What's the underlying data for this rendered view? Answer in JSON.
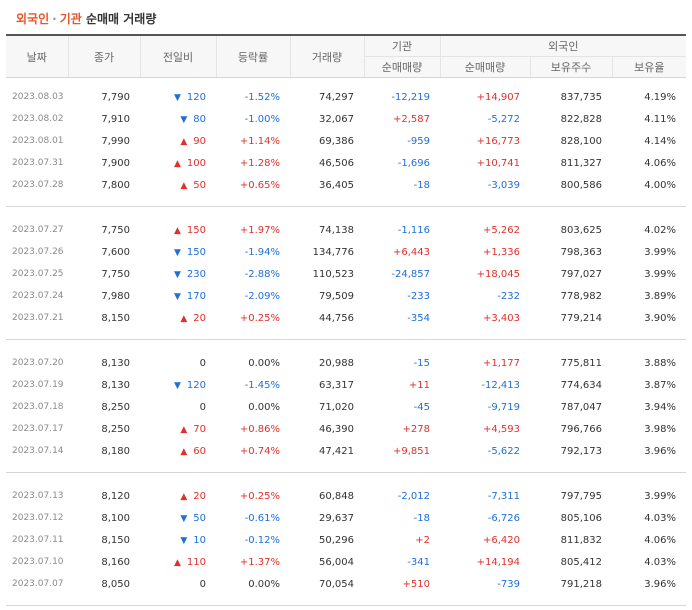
{
  "title": {
    "part1": "외국인",
    "sep": "·",
    "part2": "기관",
    "part3": "순매매 거래량"
  },
  "headers": {
    "date": "날짜",
    "close": "종가",
    "change": "전일비",
    "rate": "등락률",
    "volume": "거래량",
    "inst": "기관",
    "foreign": "외국인",
    "inst_net": "순매매량",
    "foreign_net": "순매매량",
    "foreign_hold": "보유주수",
    "foreign_ratio": "보유율"
  },
  "colors": {
    "up": "#e0302c",
    "down": "#1e6fd6",
    "accent": "#e4572e"
  },
  "groups": [
    [
      {
        "date": "2023.08.03",
        "close": "7,790",
        "dir": "down",
        "chg": "120",
        "rate": "-1.52%",
        "vol": "74,297",
        "inst": "-12,219",
        "frgn": "+14,907",
        "hold": "837,735",
        "ratio": "4.19%"
      },
      {
        "date": "2023.08.02",
        "close": "7,910",
        "dir": "down",
        "chg": "80",
        "rate": "-1.00%",
        "vol": "32,067",
        "inst": "+2,587",
        "frgn": "-5,272",
        "hold": "822,828",
        "ratio": "4.11%"
      },
      {
        "date": "2023.08.01",
        "close": "7,990",
        "dir": "up",
        "chg": "90",
        "rate": "+1.14%",
        "vol": "69,386",
        "inst": "-959",
        "frgn": "+16,773",
        "hold": "828,100",
        "ratio": "4.14%"
      },
      {
        "date": "2023.07.31",
        "close": "7,900",
        "dir": "up",
        "chg": "100",
        "rate": "+1.28%",
        "vol": "46,506",
        "inst": "-1,696",
        "frgn": "+10,741",
        "hold": "811,327",
        "ratio": "4.06%"
      },
      {
        "date": "2023.07.28",
        "close": "7,800",
        "dir": "up",
        "chg": "50",
        "rate": "+0.65%",
        "vol": "36,405",
        "inst": "-18",
        "frgn": "-3,039",
        "hold": "800,586",
        "ratio": "4.00%"
      }
    ],
    [
      {
        "date": "2023.07.27",
        "close": "7,750",
        "dir": "up",
        "chg": "150",
        "rate": "+1.97%",
        "vol": "74,138",
        "inst": "-1,116",
        "frgn": "+5,262",
        "hold": "803,625",
        "ratio": "4.02%"
      },
      {
        "date": "2023.07.26",
        "close": "7,600",
        "dir": "down",
        "chg": "150",
        "rate": "-1.94%",
        "vol": "134,776",
        "inst": "+6,443",
        "frgn": "+1,336",
        "hold": "798,363",
        "ratio": "3.99%"
      },
      {
        "date": "2023.07.25",
        "close": "7,750",
        "dir": "down",
        "chg": "230",
        "rate": "-2.88%",
        "vol": "110,523",
        "inst": "-24,857",
        "frgn": "+18,045",
        "hold": "797,027",
        "ratio": "3.99%"
      },
      {
        "date": "2023.07.24",
        "close": "7,980",
        "dir": "down",
        "chg": "170",
        "rate": "-2.09%",
        "vol": "79,509",
        "inst": "-233",
        "frgn": "-232",
        "hold": "778,982",
        "ratio": "3.89%"
      },
      {
        "date": "2023.07.21",
        "close": "8,150",
        "dir": "up",
        "chg": "20",
        "rate": "+0.25%",
        "vol": "44,756",
        "inst": "-354",
        "frgn": "+3,403",
        "hold": "779,214",
        "ratio": "3.90%"
      }
    ],
    [
      {
        "date": "2023.07.20",
        "close": "8,130",
        "dir": "none",
        "chg": "0",
        "rate": "0.00%",
        "vol": "20,988",
        "inst": "-15",
        "frgn": "+1,177",
        "hold": "775,811",
        "ratio": "3.88%"
      },
      {
        "date": "2023.07.19",
        "close": "8,130",
        "dir": "down",
        "chg": "120",
        "rate": "-1.45%",
        "vol": "63,317",
        "inst": "+11",
        "frgn": "-12,413",
        "hold": "774,634",
        "ratio": "3.87%"
      },
      {
        "date": "2023.07.18",
        "close": "8,250",
        "dir": "none",
        "chg": "0",
        "rate": "0.00%",
        "vol": "71,020",
        "inst": "-45",
        "frgn": "-9,719",
        "hold": "787,047",
        "ratio": "3.94%"
      },
      {
        "date": "2023.07.17",
        "close": "8,250",
        "dir": "up",
        "chg": "70",
        "rate": "+0.86%",
        "vol": "46,390",
        "inst": "+278",
        "frgn": "+4,593",
        "hold": "796,766",
        "ratio": "3.98%"
      },
      {
        "date": "2023.07.14",
        "close": "8,180",
        "dir": "up",
        "chg": "60",
        "rate": "+0.74%",
        "vol": "47,421",
        "inst": "+9,851",
        "frgn": "-5,622",
        "hold": "792,173",
        "ratio": "3.96%"
      }
    ],
    [
      {
        "date": "2023.07.13",
        "close": "8,120",
        "dir": "up",
        "chg": "20",
        "rate": "+0.25%",
        "vol": "60,848",
        "inst": "-2,012",
        "frgn": "-7,311",
        "hold": "797,795",
        "ratio": "3.99%"
      },
      {
        "date": "2023.07.12",
        "close": "8,100",
        "dir": "down",
        "chg": "50",
        "rate": "-0.61%",
        "vol": "29,637",
        "inst": "-18",
        "frgn": "-6,726",
        "hold": "805,106",
        "ratio": "4.03%"
      },
      {
        "date": "2023.07.11",
        "close": "8,150",
        "dir": "down",
        "chg": "10",
        "rate": "-0.12%",
        "vol": "50,296",
        "inst": "+2",
        "frgn": "+6,420",
        "hold": "811,832",
        "ratio": "4.06%"
      },
      {
        "date": "2023.07.10",
        "close": "8,160",
        "dir": "up",
        "chg": "110",
        "rate": "+1.37%",
        "vol": "56,004",
        "inst": "-341",
        "frgn": "+14,194",
        "hold": "805,412",
        "ratio": "4.03%"
      },
      {
        "date": "2023.07.07",
        "close": "8,050",
        "dir": "none",
        "chg": "0",
        "rate": "0.00%",
        "vol": "70,054",
        "inst": "+510",
        "frgn": "-739",
        "hold": "791,218",
        "ratio": "3.96%"
      }
    ]
  ]
}
